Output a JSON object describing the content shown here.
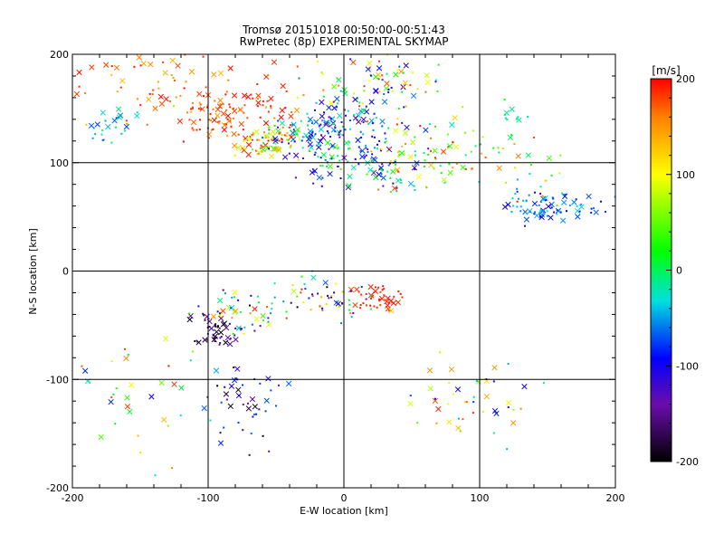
{
  "chart_data": {
    "type": "scatter",
    "title": "Tromsø 20151018 00:50:00-00:51:43",
    "subtitle": "RwPretec (8p) EXPERIMENTAL SKYMAP",
    "xlabel": "E-W location [km]",
    "ylabel": "N-S location [km]",
    "xlim": [
      -200,
      200
    ],
    "ylim": [
      -200,
      200
    ],
    "x_ticks": [
      "-200",
      "-100",
      "0",
      "100",
      "200"
    ],
    "y_ticks": [
      "-200",
      "-100",
      "0",
      "100",
      "200"
    ],
    "grid": true,
    "colorbar": {
      "label": "[m/s]",
      "range": [
        -200,
        200
      ],
      "ticks": [
        "200",
        "100",
        "0",
        "-100",
        "-200"
      ],
      "colormap": "black-purple-blue-cyan-green-yellow-red"
    },
    "markers": {
      "small": "dot",
      "large": "x"
    },
    "clusters": [
      {
        "cx": -95,
        "cy": 145,
        "sx": 14,
        "sy": 12,
        "n": 60,
        "v": [
          150,
          200
        ]
      },
      {
        "cx": -140,
        "cy": 168,
        "sx": 35,
        "sy": 22,
        "n": 60,
        "v": [
          120,
          200
        ]
      },
      {
        "cx": -60,
        "cy": 150,
        "sx": 22,
        "sy": 22,
        "n": 50,
        "v": [
          140,
          200
        ]
      },
      {
        "cx": -55,
        "cy": 120,
        "sx": 18,
        "sy": 8,
        "n": 80,
        "v": [
          20,
          200
        ]
      },
      {
        "cx": -10,
        "cy": 130,
        "sx": 28,
        "sy": 18,
        "n": 130,
        "v": [
          -150,
          0
        ]
      },
      {
        "cx": 10,
        "cy": 100,
        "sx": 28,
        "sy": 15,
        "n": 100,
        "v": [
          -150,
          50
        ]
      },
      {
        "cx": 20,
        "cy": 170,
        "sx": 35,
        "sy": 18,
        "n": 90,
        "v": [
          -120,
          200
        ]
      },
      {
        "cx": 65,
        "cy": 110,
        "sx": 28,
        "sy": 20,
        "n": 80,
        "v": [
          -50,
          200
        ]
      },
      {
        "cx": 155,
        "cy": 60,
        "sx": 22,
        "sy": 9,
        "n": 75,
        "v": [
          -110,
          -20
        ]
      },
      {
        "cx": -175,
        "cy": 135,
        "sx": 12,
        "sy": 12,
        "n": 25,
        "v": [
          -80,
          0
        ]
      },
      {
        "cx": 125,
        "cy": 140,
        "sx": 8,
        "sy": 10,
        "n": 12,
        "v": [
          -20,
          20
        ]
      },
      {
        "cx": 25,
        "cy": -25,
        "sx": 9,
        "sy": 7,
        "n": 45,
        "v": [
          180,
          200
        ]
      },
      {
        "cx": -10,
        "cy": -25,
        "sx": 28,
        "sy": 12,
        "n": 60,
        "v": [
          -200,
          200
        ]
      },
      {
        "cx": -80,
        "cy": -40,
        "sx": 22,
        "sy": 15,
        "n": 55,
        "v": [
          -200,
          200
        ]
      },
      {
        "cx": -95,
        "cy": -55,
        "sx": 10,
        "sy": 10,
        "n": 40,
        "v": [
          -200,
          -130
        ]
      },
      {
        "cx": -75,
        "cy": -125,
        "sx": 18,
        "sy": 25,
        "n": 45,
        "v": [
          -200,
          -60
        ]
      },
      {
        "cx": 100,
        "cy": -115,
        "sx": 30,
        "sy": 25,
        "n": 45,
        "v": [
          -100,
          200
        ]
      },
      {
        "cx": -150,
        "cy": -115,
        "sx": 30,
        "sy": 35,
        "n": 35,
        "v": [
          -100,
          200
        ]
      },
      {
        "cx": 130,
        "cy": 100,
        "sx": 25,
        "sy": 25,
        "n": 25,
        "v": [
          -50,
          200
        ]
      }
    ]
  }
}
